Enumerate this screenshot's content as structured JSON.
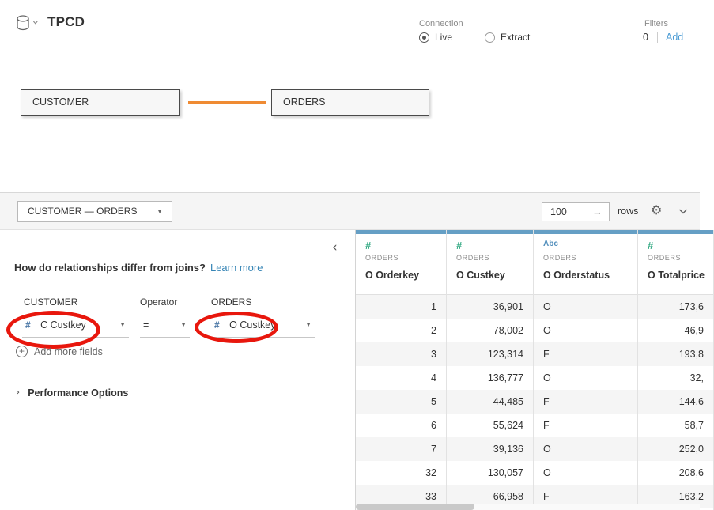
{
  "header": {
    "title": "TPCD",
    "connection": {
      "label": "Connection",
      "options": [
        {
          "label": "Live",
          "selected": true
        },
        {
          "label": "Extract",
          "selected": false
        }
      ]
    },
    "filters": {
      "label": "Filters",
      "count": "0",
      "add_label": "Add",
      "add_color": "#4a9bd4"
    }
  },
  "canvas": {
    "tables": [
      {
        "name": "CUSTOMER"
      },
      {
        "name": "ORDERS"
      }
    ],
    "connector_color": "#ef8b33"
  },
  "toolbar": {
    "relationship_label": "CUSTOMER  —  ORDERS",
    "row_count": "100",
    "arrow": "→",
    "rows_label": "rows",
    "gear_icon": "⚙"
  },
  "left_panel": {
    "question": "How do relationships differ from joins?",
    "learn_more": "Learn more",
    "link_color": "#3584b5",
    "collapse_chevron": "‹",
    "columns": {
      "left": "CUSTOMER",
      "operator": "Operator",
      "right": "ORDERS"
    },
    "mapping": {
      "left_icon": "#",
      "left_field": "C Custkey",
      "operator": "=",
      "right_icon": "#",
      "right_field": "O Custkey",
      "field_icon_color": "#4e79a7"
    },
    "add_more": "Add more fields",
    "performance": "Performance Options",
    "highlight_color": "#e8170d"
  },
  "grid": {
    "accent_color": "#659fc5",
    "number_icon_color": "#28a57c",
    "string_icon_color": "#4f8dbb",
    "columns": [
      {
        "type": "number",
        "icon": "#",
        "table": "ORDERS",
        "field": "O Orderkey",
        "align": "right",
        "values": [
          "1",
          "2",
          "3",
          "4",
          "5",
          "6",
          "7",
          "32",
          "33"
        ]
      },
      {
        "type": "number",
        "icon": "#",
        "table": "ORDERS",
        "field": "O Custkey",
        "align": "right",
        "values": [
          "36,901",
          "78,002",
          "123,314",
          "136,777",
          "44,485",
          "55,624",
          "39,136",
          "130,057",
          "66,958"
        ]
      },
      {
        "type": "string",
        "icon": "Abc",
        "table": "ORDERS",
        "field": "O Orderstatus",
        "align": "left",
        "values": [
          "O",
          "O",
          "F",
          "O",
          "F",
          "F",
          "O",
          "O",
          "F"
        ]
      },
      {
        "type": "number",
        "icon": "#",
        "table": "ORDERS",
        "field": "O Totalprice",
        "align": "right",
        "values": [
          "173,6",
          "46,9",
          "193,8",
          "32,",
          "144,6",
          "58,7",
          "252,0",
          "208,6",
          "163,2"
        ]
      }
    ]
  }
}
